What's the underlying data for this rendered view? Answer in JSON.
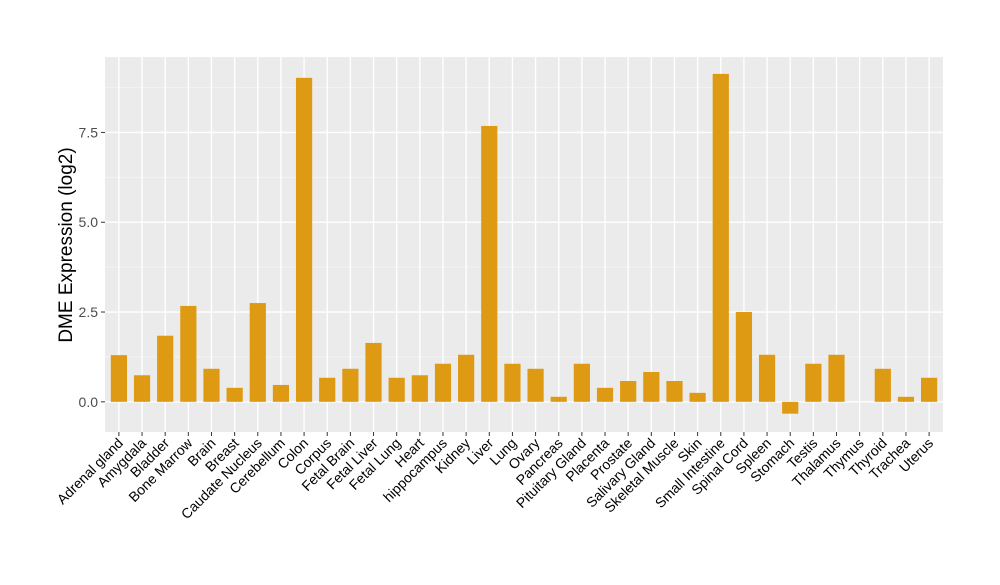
{
  "chart_data": {
    "type": "bar",
    "title": "",
    "xlabel": "",
    "ylabel": "DME Expression (log2)",
    "ylim": [
      -0.84,
      9.6
    ],
    "yticks": [
      0.0,
      2.5,
      5.0,
      7.5
    ],
    "ytick_labels": [
      "0.0",
      "2.5",
      "5.0",
      "7.5"
    ],
    "grid": true,
    "bar_color": "#DE9A12",
    "panel_color": "#EBEBEB",
    "categories": [
      "Adrenal gland",
      "Amygdala",
      "Bladder",
      "Bone Marrow",
      "Brain",
      "Breast",
      "Caudate Nucleus",
      "Cerebellum",
      "Colon",
      "Corpus",
      "Fetal Brain",
      "Fetal Liver",
      "Fetal Lung",
      "Heart",
      "hippocampus",
      "Kidney",
      "Liver",
      "Lung",
      "Ovary",
      "Pancreas",
      "Pituitary Gland",
      "Placenta",
      "Prostate",
      "Salivary Gland",
      "Skeletal Muscle",
      "Skin",
      "Small Intestine",
      "Spinal Cord",
      "Spleen",
      "Stomach",
      "Testis",
      "Thalamus",
      "Thymus",
      "Thyroid",
      "Trachea",
      "Uterus"
    ],
    "values": [
      1.3,
      0.74,
      1.84,
      2.67,
      0.92,
      0.39,
      2.75,
      0.47,
      9.02,
      0.67,
      0.92,
      1.64,
      0.67,
      0.74,
      1.06,
      1.31,
      7.68,
      1.06,
      0.92,
      0.14,
      1.06,
      0.39,
      0.58,
      0.83,
      0.58,
      0.25,
      9.13,
      2.5,
      1.31,
      -0.33,
      1.06,
      1.31,
      0.0,
      0.92,
      0.14,
      0.67
    ]
  }
}
